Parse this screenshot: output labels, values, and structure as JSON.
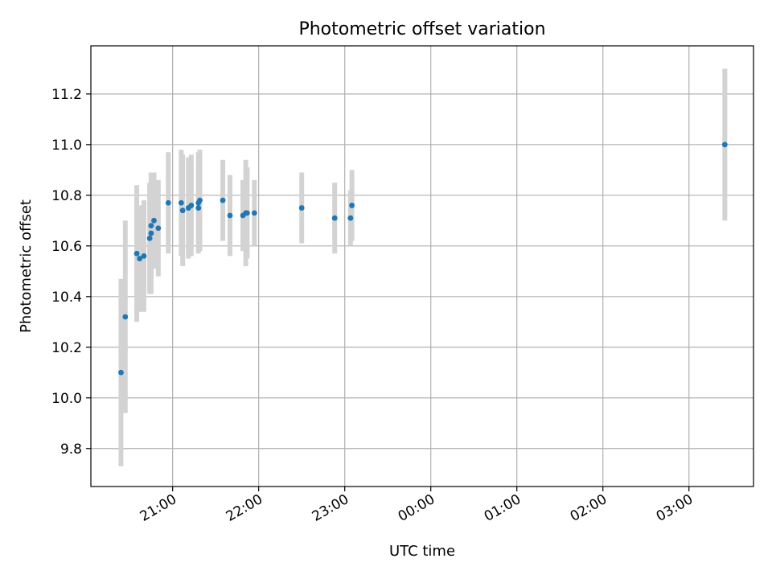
{
  "chart_data": {
    "type": "scatter",
    "title": "Photometric offset variation",
    "xlabel": "UTC time",
    "ylabel": "Photometric offset",
    "x_unit": "UTC time",
    "xlim": [
      "20:03",
      "03:45"
    ],
    "ylim": [
      9.65,
      11.39
    ],
    "xticks": [
      {
        "t": "21:00",
        "label": "21:00"
      },
      {
        "t": "22:00",
        "label": "22:00"
      },
      {
        "t": "23:00",
        "label": "23:00"
      },
      {
        "t": "00:00",
        "label": "00:00"
      },
      {
        "t": "01:00",
        "label": "01:00"
      },
      {
        "t": "02:00",
        "label": "02:00"
      },
      {
        "t": "03:00",
        "label": "03:00"
      }
    ],
    "yticks": [
      9.8,
      10.0,
      10.2,
      10.4,
      10.6,
      10.8,
      11.0,
      11.2
    ],
    "grid": true,
    "colors": {
      "point": "#1f77b4",
      "errorbar": "#d3d3d3",
      "grid": "#b0b0b0"
    },
    "points": [
      {
        "t": "20:24",
        "y": 10.1,
        "err": 0.37
      },
      {
        "t": "20:27",
        "y": 10.32,
        "err": 0.38
      },
      {
        "t": "20:35",
        "y": 10.57,
        "err": 0.27
      },
      {
        "t": "20:37",
        "y": 10.55,
        "err": 0.21
      },
      {
        "t": "20:40",
        "y": 10.56,
        "err": 0.22
      },
      {
        "t": "20:44",
        "y": 10.63,
        "err": 0.22
      },
      {
        "t": "20:45",
        "y": 10.65,
        "err": 0.24
      },
      {
        "t": "20:45",
        "y": 10.68,
        "err": 0.21
      },
      {
        "t": "20:47",
        "y": 10.7,
        "err": 0.19
      },
      {
        "t": "20:50",
        "y": 10.67,
        "err": 0.19
      },
      {
        "t": "20:57",
        "y": 10.77,
        "err": 0.2
      },
      {
        "t": "21:06",
        "y": 10.77,
        "err": 0.21
      },
      {
        "t": "21:07",
        "y": 10.74,
        "err": 0.22
      },
      {
        "t": "21:11",
        "y": 10.75,
        "err": 0.2
      },
      {
        "t": "21:13",
        "y": 10.76,
        "err": 0.2
      },
      {
        "t": "21:18",
        "y": 10.75,
        "err": 0.17
      },
      {
        "t": "21:18",
        "y": 10.77,
        "err": 0.2
      },
      {
        "t": "21:19",
        "y": 10.78,
        "err": 0.2
      },
      {
        "t": "21:35",
        "y": 10.78,
        "err": 0.16
      },
      {
        "t": "21:40",
        "y": 10.72,
        "err": 0.16
      },
      {
        "t": "21:49",
        "y": 10.72,
        "err": 0.14
      },
      {
        "t": "21:51",
        "y": 10.73,
        "err": 0.21
      },
      {
        "t": "21:52",
        "y": 10.73,
        "err": 0.18
      },
      {
        "t": "21:57",
        "y": 10.73,
        "err": 0.13
      },
      {
        "t": "22:30",
        "y": 10.75,
        "err": 0.14
      },
      {
        "t": "22:53",
        "y": 10.71,
        "err": 0.14
      },
      {
        "t": "23:04",
        "y": 10.71,
        "err": 0.11
      },
      {
        "t": "23:05",
        "y": 10.76,
        "err": 0.14
      },
      {
        "t": "03:25",
        "y": 11.0,
        "err": 0.3
      }
    ]
  }
}
